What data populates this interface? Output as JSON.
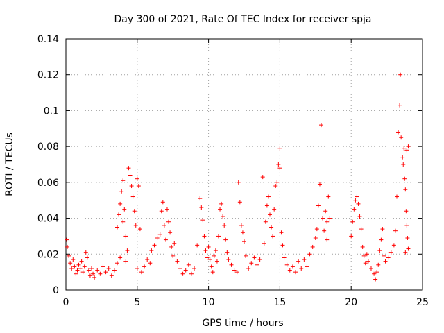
{
  "chart_data": {
    "type": "scatter",
    "title": "Day 300 of 2021, Rate Of TEC Index for receiver spja",
    "xlabel": "GPS time / hours",
    "ylabel": "ROTI / TECUs",
    "xlim": [
      0,
      25
    ],
    "ylim": [
      0,
      0.14
    ],
    "xticks": [
      0,
      5,
      10,
      15,
      20,
      25
    ],
    "xtick_labels": [
      "0",
      "5",
      "10",
      "15",
      "20",
      "25"
    ],
    "yticks": [
      0,
      0.02,
      0.04,
      0.06,
      0.08,
      0.1,
      0.12,
      0.14
    ],
    "ytick_labels": [
      "0",
      "0.02",
      "0.04",
      "0.06",
      "0.08",
      "0.1",
      "0.12",
      "0.14"
    ],
    "grid": true,
    "marker": "+",
    "color": "#ff0000",
    "series": [
      {
        "name": "ROTI",
        "points": [
          [
            0.05,
            0.028
          ],
          [
            0.1,
            0.024
          ],
          [
            0.2,
            0.019
          ],
          [
            0.3,
            0.015
          ],
          [
            0.4,
            0.012
          ],
          [
            0.5,
            0.017
          ],
          [
            0.6,
            0.013
          ],
          [
            0.7,
            0.009
          ],
          [
            0.8,
            0.011
          ],
          [
            0.9,
            0.014
          ],
          [
            1.0,
            0.012
          ],
          [
            1.1,
            0.016
          ],
          [
            1.2,
            0.01
          ],
          [
            1.3,
            0.013
          ],
          [
            1.4,
            0.021
          ],
          [
            1.5,
            0.018
          ],
          [
            1.6,
            0.011
          ],
          [
            1.7,
            0.008
          ],
          [
            1.8,
            0.012
          ],
          [
            1.9,
            0.009
          ],
          [
            2.0,
            0.007
          ],
          [
            2.2,
            0.011
          ],
          [
            2.4,
            0.009
          ],
          [
            2.6,
            0.013
          ],
          [
            2.8,
            0.01
          ],
          [
            3.0,
            0.012
          ],
          [
            3.2,
            0.008
          ],
          [
            3.4,
            0.011
          ],
          [
            3.6,
            0.015
          ],
          [
            3.8,
            0.018
          ],
          [
            3.6,
            0.035
          ],
          [
            3.7,
            0.042
          ],
          [
            3.8,
            0.048
          ],
          [
            3.9,
            0.055
          ],
          [
            4.0,
            0.061
          ],
          [
            4.0,
            0.038
          ],
          [
            4.1,
            0.045
          ],
          [
            4.2,
            0.03
          ],
          [
            4.3,
            0.022
          ],
          [
            4.2,
            0.016
          ],
          [
            4.4,
            0.068
          ],
          [
            4.5,
            0.064
          ],
          [
            4.6,
            0.058
          ],
          [
            4.7,
            0.052
          ],
          [
            4.8,
            0.044
          ],
          [
            4.9,
            0.036
          ],
          [
            5.0,
            0.062
          ],
          [
            5.1,
            0.058
          ],
          [
            5.2,
            0.034
          ],
          [
            5.0,
            0.012
          ],
          [
            5.3,
            0.01
          ],
          [
            5.5,
            0.013
          ],
          [
            5.7,
            0.017
          ],
          [
            5.9,
            0.015
          ],
          [
            6.0,
            0.022
          ],
          [
            6.2,
            0.025
          ],
          [
            6.4,
            0.029
          ],
          [
            6.6,
            0.031
          ],
          [
            6.7,
            0.044
          ],
          [
            6.8,
            0.049
          ],
          [
            6.9,
            0.036
          ],
          [
            7.0,
            0.028
          ],
          [
            7.1,
            0.045
          ],
          [
            7.2,
            0.038
          ],
          [
            7.3,
            0.032
          ],
          [
            7.4,
            0.024
          ],
          [
            7.5,
            0.019
          ],
          [
            7.6,
            0.026
          ],
          [
            7.8,
            0.016
          ],
          [
            8.0,
            0.012
          ],
          [
            8.2,
            0.009
          ],
          [
            8.4,
            0.011
          ],
          [
            8.6,
            0.014
          ],
          [
            8.8,
            0.009
          ],
          [
            9.0,
            0.012
          ],
          [
            9.2,
            0.025
          ],
          [
            9.4,
            0.051
          ],
          [
            9.5,
            0.046
          ],
          [
            9.6,
            0.039
          ],
          [
            9.7,
            0.03
          ],
          [
            9.8,
            0.022
          ],
          [
            9.9,
            0.018
          ],
          [
            10.0,
            0.024
          ],
          [
            10.1,
            0.017
          ],
          [
            10.2,
            0.013
          ],
          [
            10.3,
            0.01
          ],
          [
            10.4,
            0.019
          ],
          [
            10.5,
            0.022
          ],
          [
            10.6,
            0.016
          ],
          [
            10.7,
            0.03
          ],
          [
            10.8,
            0.045
          ],
          [
            10.9,
            0.048
          ],
          [
            11.0,
            0.041
          ],
          [
            11.1,
            0.036
          ],
          [
            11.2,
            0.028
          ],
          [
            11.3,
            0.021
          ],
          [
            11.4,
            0.017
          ],
          [
            11.6,
            0.014
          ],
          [
            11.8,
            0.011
          ],
          [
            12.0,
            0.01
          ],
          [
            12.1,
            0.06
          ],
          [
            12.2,
            0.049
          ],
          [
            12.3,
            0.036
          ],
          [
            12.4,
            0.032
          ],
          [
            12.5,
            0.027
          ],
          [
            12.6,
            0.019
          ],
          [
            12.8,
            0.012
          ],
          [
            13.0,
            0.015
          ],
          [
            13.2,
            0.018
          ],
          [
            13.4,
            0.014
          ],
          [
            13.6,
            0.017
          ],
          [
            13.8,
            0.063
          ],
          [
            13.9,
            0.026
          ],
          [
            14.0,
            0.038
          ],
          [
            14.1,
            0.047
          ],
          [
            14.2,
            0.052
          ],
          [
            14.3,
            0.042
          ],
          [
            14.4,
            0.035
          ],
          [
            14.5,
            0.03
          ],
          [
            14.6,
            0.045
          ],
          [
            14.7,
            0.058
          ],
          [
            14.8,
            0.06
          ],
          [
            14.9,
            0.07
          ],
          [
            15.0,
            0.079
          ],
          [
            15.0,
            0.068
          ],
          [
            15.1,
            0.032
          ],
          [
            15.2,
            0.025
          ],
          [
            15.3,
            0.018
          ],
          [
            15.5,
            0.014
          ],
          [
            15.7,
            0.011
          ],
          [
            15.9,
            0.013
          ],
          [
            16.1,
            0.01
          ],
          [
            16.3,
            0.016
          ],
          [
            16.5,
            0.012
          ],
          [
            16.7,
            0.017
          ],
          [
            16.9,
            0.013
          ],
          [
            17.1,
            0.02
          ],
          [
            17.3,
            0.024
          ],
          [
            17.5,
            0.029
          ],
          [
            17.6,
            0.034
          ],
          [
            17.7,
            0.047
          ],
          [
            17.8,
            0.059
          ],
          [
            17.9,
            0.092
          ],
          [
            18.0,
            0.04
          ],
          [
            18.1,
            0.033
          ],
          [
            18.2,
            0.044
          ],
          [
            18.3,
            0.038
          ],
          [
            18.4,
            0.052
          ],
          [
            18.5,
            0.04
          ],
          [
            18.3,
            0.028
          ],
          [
            20.0,
            0.03
          ],
          [
            20.1,
            0.038
          ],
          [
            20.2,
            0.045
          ],
          [
            20.3,
            0.05
          ],
          [
            20.4,
            0.052
          ],
          [
            20.5,
            0.048
          ],
          [
            20.6,
            0.041
          ],
          [
            20.7,
            0.034
          ],
          [
            20.8,
            0.024
          ],
          [
            20.9,
            0.019
          ],
          [
            21.0,
            0.015
          ],
          [
            21.1,
            0.02
          ],
          [
            21.2,
            0.016
          ],
          [
            21.4,
            0.012
          ],
          [
            21.6,
            0.009
          ],
          [
            21.7,
            0.006
          ],
          [
            21.8,
            0.01
          ],
          [
            21.9,
            0.014
          ],
          [
            22.0,
            0.022
          ],
          [
            22.1,
            0.028
          ],
          [
            22.2,
            0.034
          ],
          [
            22.3,
            0.019
          ],
          [
            22.4,
            0.016
          ],
          [
            22.6,
            0.018
          ],
          [
            22.8,
            0.021
          ],
          [
            23.0,
            0.025
          ],
          [
            23.1,
            0.033
          ],
          [
            23.2,
            0.052
          ],
          [
            23.3,
            0.088
          ],
          [
            23.4,
            0.103
          ],
          [
            23.45,
            0.12
          ],
          [
            23.5,
            0.085
          ],
          [
            23.6,
            0.074
          ],
          [
            23.65,
            0.07
          ],
          [
            23.7,
            0.079
          ],
          [
            23.75,
            0.062
          ],
          [
            23.8,
            0.056
          ],
          [
            23.85,
            0.044
          ],
          [
            23.9,
            0.036
          ],
          [
            23.95,
            0.029
          ],
          [
            24.0,
            0.023
          ],
          [
            24.0,
            0.08
          ],
          [
            23.9,
            0.078
          ],
          [
            23.8,
            0.021
          ]
        ]
      }
    ]
  }
}
